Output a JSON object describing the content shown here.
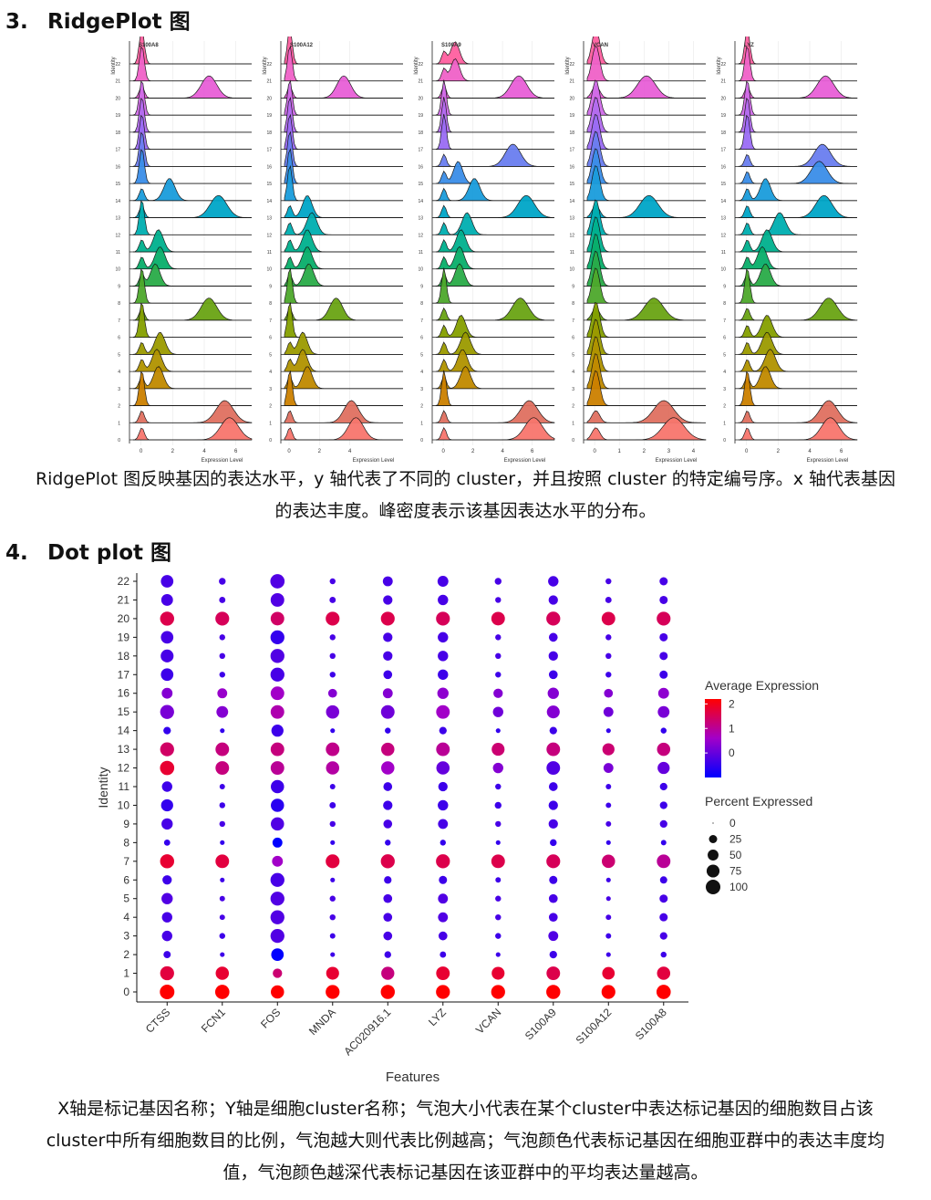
{
  "section3": {
    "number": "3.",
    "title": "RidgePlot 图"
  },
  "ridge_desc": {
    "line1": "RidgePlot 图反映基因的表达水平，y 轴代表了不同的 cluster，并且按照 cluster  的特定编号序。x 轴代表基因",
    "line2": "的表达丰度。峰密度表示该基因表达水平的分布。"
  },
  "section4": {
    "number": "4.",
    "title": "Dot plot 图"
  },
  "dot_desc": {
    "line1": "X轴是标记基因名称；Y轴是细胞cluster名称；气泡大小代表在某个cluster中表达标记基因的细胞数目占该",
    "line2": "cluster中所有细胞数目的比例，气泡越大则代表比例越高；气泡颜色代表标记基因在细胞亚群中的表达丰度均",
    "line3": "值，气泡颜色越深代表标记基因在该亚群中的平均表达量越高。"
  },
  "colors": {
    "high": "#ff0000",
    "mid": "#a200c8",
    "low": "#0000ff",
    "grid": "#e6e6e6"
  },
  "chart_data": [
    {
      "type": "ridge",
      "panels": [
        {
          "title": "S100A8",
          "ylabel": "Identity",
          "xlabel": "Expression Level",
          "xticks": [
            "0",
            "2",
            "4",
            "6"
          ],
          "xlim": [
            -0.5,
            7
          ],
          "clusters": [
            "22",
            "21",
            "20",
            "19",
            "18",
            "17",
            "16",
            "15",
            "14",
            "13",
            "12",
            "11",
            "10",
            "9",
            "8",
            "7",
            "6",
            "5",
            "4",
            "3",
            "2",
            "1",
            "0"
          ],
          "peaks": [
            0.1,
            0.1,
            4.3,
            0.1,
            0.1,
            0.1,
            0.2,
            0.3,
            1.8,
            4.9,
            0.6,
            1.1,
            1.2,
            0.9,
            0.3,
            4.3,
            0.4,
            1.2,
            1.0,
            1.1,
            0.1,
            5.3,
            5.6
          ]
        },
        {
          "title": "S100A12",
          "ylabel": "Identity",
          "xlabel": "Expression Level",
          "xticks": [
            "0",
            "2",
            "4"
          ],
          "xlim": [
            -0.3,
            7.5
          ],
          "clusters": [
            "22",
            "21",
            "20",
            "19",
            "18",
            "17",
            "16",
            "15",
            "14",
            "13",
            "12",
            "11",
            "10",
            "9",
            "8",
            "7",
            "6",
            "5",
            "4",
            "3",
            "2",
            "1",
            "0"
          ],
          "peaks": [
            0.0,
            0.0,
            3.6,
            0.0,
            0.0,
            0.0,
            0.0,
            0.0,
            0.0,
            1.2,
            1.5,
            1.2,
            1.2,
            1.3,
            0.0,
            3.1,
            0.0,
            0.9,
            0.9,
            1.2,
            0.0,
            4.1,
            4.4
          ]
        },
        {
          "title": "S100A9",
          "ylabel": "Identity",
          "xlabel": "Expression Level",
          "xticks": [
            "0",
            "2",
            "4",
            "6"
          ],
          "xlim": [
            -0.5,
            7.5
          ],
          "clusters": [
            "22",
            "21",
            "20",
            "19",
            "18",
            "17",
            "16",
            "15",
            "14",
            "13",
            "12",
            "11",
            "10",
            "9",
            "8",
            "7",
            "6",
            "5",
            "4",
            "3",
            "2",
            "1",
            "0"
          ],
          "peaks": [
            0.8,
            0.8,
            5.1,
            0.5,
            0.5,
            0.5,
            4.7,
            1.0,
            2.1,
            5.6,
            1.6,
            1.2,
            1.1,
            1.1,
            0.6,
            5.2,
            1.2,
            1.5,
            1.3,
            1.5,
            0.3,
            5.8,
            6.1
          ]
        },
        {
          "title": "VCAN",
          "ylabel": "Identity",
          "xlabel": "Expression Level",
          "xticks": [
            "0",
            "1",
            "2",
            "3",
            "4"
          ],
          "xlim": [
            -0.3,
            4.5
          ],
          "clusters": [
            "22",
            "21",
            "20",
            "19",
            "18",
            "17",
            "16",
            "15",
            "14",
            "13",
            "12",
            "11",
            "10",
            "9",
            "8",
            "7",
            "6",
            "5",
            "4",
            "3",
            "2",
            "1",
            "0"
          ],
          "peaks": [
            0.0,
            0.0,
            2.1,
            0.0,
            0.0,
            0.0,
            0.0,
            0.0,
            0.0,
            2.2,
            0.0,
            0.0,
            0.0,
            0.0,
            0.0,
            2.4,
            0.0,
            0.0,
            0.0,
            0.0,
            0.0,
            2.8,
            3.2
          ]
        },
        {
          "title": "LYZ",
          "ylabel": "Identity",
          "xlabel": "Expression Level",
          "xticks": [
            "0",
            "2",
            "4",
            "6"
          ],
          "xlim": [
            -0.5,
            7
          ],
          "clusters": [
            "22",
            "21",
            "20",
            "19",
            "18",
            "17",
            "16",
            "15",
            "14",
            "13",
            "12",
            "11",
            "10",
            "9",
            "8",
            "7",
            "6",
            "5",
            "4",
            "3",
            "2",
            "1",
            "0"
          ],
          "peaks": [
            0.5,
            0.5,
            5.0,
            0.5,
            0.5,
            0.5,
            4.8,
            4.6,
            1.2,
            4.9,
            2.1,
            1.3,
            1.0,
            1.2,
            0.3,
            5.2,
            1.3,
            1.3,
            1.5,
            1.2,
            0.1,
            5.2,
            5.3
          ]
        }
      ]
    },
    {
      "type": "dot",
      "title": "",
      "xlabel": "Features",
      "ylabel": "Identity",
      "features": [
        "CTSS",
        "FCN1",
        "FOS",
        "MNDA",
        "AC020916.1",
        "LYZ",
        "VCAN",
        "S100A9",
        "S100A12",
        "S100A8"
      ],
      "identities": [
        "0",
        "1",
        "2",
        "3",
        "4",
        "5",
        "6",
        "7",
        "8",
        "9",
        "10",
        "11",
        "12",
        "13",
        "14",
        "15",
        "16",
        "17",
        "18",
        "19",
        "20",
        "21",
        "22"
      ],
      "percent_expressed": [
        [
          100,
          95,
          80,
          90,
          92,
          90,
          90,
          92,
          88,
          95
        ],
        [
          90,
          80,
          35,
          75,
          78,
          85,
          75,
          85,
          70,
          80
        ],
        [
          18,
          5,
          70,
          5,
          15,
          12,
          5,
          20,
          5,
          10
        ],
        [
          45,
          10,
          90,
          8,
          30,
          30,
          10,
          40,
          8,
          20
        ],
        [
          45,
          8,
          90,
          10,
          30,
          40,
          10,
          30,
          8,
          25
        ],
        [
          55,
          8,
          90,
          10,
          30,
          40,
          10,
          30,
          5,
          25
        ],
        [
          35,
          5,
          90,
          5,
          20,
          25,
          8,
          25,
          5,
          18
        ],
        [
          92,
          85,
          50,
          88,
          90,
          90,
          85,
          88,
          80,
          85
        ],
        [
          12,
          5,
          40,
          5,
          10,
          10,
          5,
          15,
          5,
          8
        ],
        [
          55,
          10,
          80,
          10,
          30,
          40,
          10,
          35,
          8,
          20
        ],
        [
          65,
          10,
          80,
          12,
          35,
          45,
          15,
          35,
          8,
          20
        ],
        [
          45,
          8,
          80,
          8,
          30,
          35,
          10,
          30,
          8,
          20
        ],
        [
          95,
          85,
          85,
          80,
          80,
          80,
          45,
          85,
          40,
          65
        ],
        [
          90,
          85,
          85,
          85,
          80,
          85,
          75,
          85,
          65,
          80
        ],
        [
          20,
          5,
          65,
          5,
          10,
          20,
          5,
          20,
          5,
          10
        ],
        [
          90,
          60,
          85,
          80,
          85,
          85,
          45,
          75,
          40,
          60
        ],
        [
          50,
          40,
          85,
          30,
          40,
          55,
          35,
          55,
          30,
          50
        ],
        [
          70,
          10,
          90,
          10,
          30,
          45,
          10,
          30,
          10,
          25
        ],
        [
          75,
          10,
          90,
          10,
          35,
          45,
          10,
          35,
          10,
          25
        ],
        [
          70,
          10,
          90,
          10,
          35,
          45,
          10,
          30,
          10,
          25
        ],
        [
          92,
          88,
          85,
          88,
          88,
          88,
          85,
          90,
          85,
          88
        ],
        [
          60,
          12,
          85,
          12,
          35,
          45,
          10,
          35,
          12,
          25
        ],
        [
          70,
          15,
          95,
          10,
          40,
          50,
          15,
          45,
          10,
          25
        ]
      ],
      "average_expression": [
        [
          2.2,
          2.2,
          2.2,
          2.2,
          2.2,
          2.2,
          2.2,
          2.2,
          2.2,
          2.2
        ],
        [
          1.7,
          1.8,
          1.3,
          1.8,
          1.2,
          1.8,
          1.8,
          1.6,
          1.8,
          1.7
        ],
        [
          -0.4,
          -0.4,
          -1.0,
          -0.4,
          -0.4,
          -0.4,
          -0.4,
          -0.4,
          -0.4,
          -0.4
        ],
        [
          -0.3,
          -0.4,
          -0.2,
          -0.4,
          -0.3,
          -0.3,
          -0.4,
          -0.2,
          -0.4,
          -0.3
        ],
        [
          -0.3,
          -0.3,
          -0.2,
          -0.3,
          -0.3,
          -0.2,
          -0.3,
          -0.3,
          -0.3,
          -0.3
        ],
        [
          -0.2,
          -0.3,
          -0.2,
          -0.3,
          -0.3,
          -0.2,
          -0.3,
          -0.3,
          -0.3,
          -0.3
        ],
        [
          -0.4,
          -0.4,
          -0.3,
          -0.4,
          -0.4,
          -0.4,
          -0.4,
          -0.4,
          -0.4,
          -0.4
        ],
        [
          1.8,
          1.7,
          0.6,
          1.7,
          1.6,
          1.6,
          1.6,
          1.5,
          1.3,
          1.0
        ],
        [
          -0.5,
          -0.5,
          -1.0,
          -0.5,
          -0.5,
          -0.5,
          -0.5,
          -0.5,
          -0.5,
          -0.5
        ],
        [
          -0.3,
          -0.3,
          -0.2,
          -0.3,
          -0.3,
          -0.3,
          -0.3,
          -0.3,
          -0.3,
          -0.3
        ],
        [
          -0.5,
          -0.4,
          -0.6,
          -0.4,
          -0.4,
          -0.4,
          -0.4,
          -0.4,
          -0.4,
          -0.4
        ],
        [
          -0.4,
          -0.4,
          -0.4,
          -0.4,
          -0.4,
          -0.4,
          -0.4,
          -0.4,
          -0.4,
          -0.4
        ],
        [
          1.8,
          1.2,
          1.0,
          0.9,
          0.6,
          0.0,
          0.3,
          -0.2,
          0.2,
          0.0
        ],
        [
          1.4,
          1.2,
          1.2,
          1.1,
          1.2,
          1.0,
          1.3,
          1.2,
          1.3,
          1.2
        ],
        [
          -0.5,
          -0.5,
          -0.4,
          -0.5,
          -0.5,
          -0.4,
          -0.5,
          -0.4,
          -0.5,
          -0.5
        ],
        [
          0.2,
          0.3,
          0.8,
          0.2,
          0.1,
          0.6,
          0.1,
          0.3,
          0.1,
          0.2
        ],
        [
          0.3,
          0.5,
          0.6,
          0.3,
          0.3,
          0.4,
          0.3,
          0.3,
          0.3,
          0.4
        ],
        [
          -0.4,
          -0.4,
          -0.3,
          -0.4,
          -0.4,
          -0.4,
          -0.4,
          -0.4,
          -0.4,
          -0.4
        ],
        [
          -0.3,
          -0.3,
          -0.2,
          -0.3,
          -0.3,
          -0.3,
          -0.3,
          -0.3,
          -0.3,
          -0.3
        ],
        [
          -0.3,
          -0.3,
          -0.5,
          -0.3,
          -0.3,
          -0.3,
          -0.3,
          -0.3,
          -0.3,
          -0.3
        ],
        [
          1.6,
          1.5,
          1.4,
          1.6,
          1.6,
          1.5,
          1.6,
          1.5,
          1.6,
          1.5
        ],
        [
          -0.3,
          -0.3,
          -0.2,
          -0.3,
          -0.3,
          -0.3,
          -0.3,
          -0.3,
          -0.3,
          -0.3
        ],
        [
          -0.3,
          -0.3,
          -0.2,
          -0.3,
          -0.3,
          -0.3,
          -0.3,
          -0.3,
          -0.3,
          -0.3
        ]
      ],
      "yticks": [
        "0",
        "1",
        "2",
        "3",
        "4",
        "5",
        "6",
        "7",
        "8",
        "9",
        "10",
        "11",
        "12",
        "13",
        "14",
        "15",
        "16",
        "17",
        "18",
        "19",
        "20",
        "21",
        "22"
      ],
      "legend": {
        "color_title": "Average Expression",
        "color_ticks": [
          "2",
          "1",
          "0"
        ],
        "color_range": [
          -1,
          2.2
        ],
        "size_title": "Percent Expressed",
        "size_ticks": [
          "0",
          "25",
          "50",
          "75",
          "100"
        ],
        "position": "right"
      }
    }
  ]
}
